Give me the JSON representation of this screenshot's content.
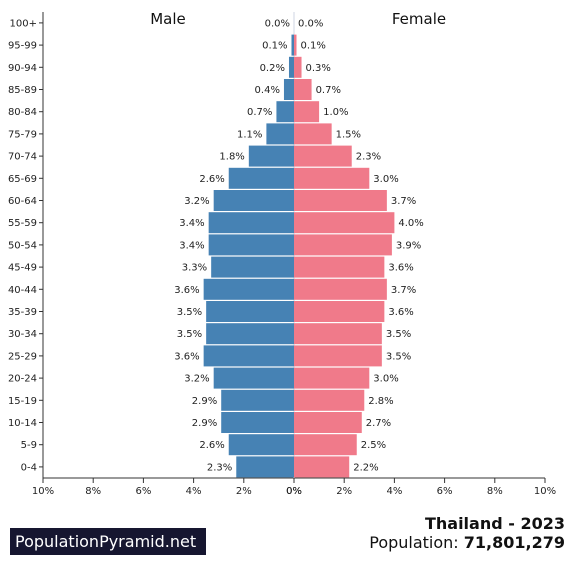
{
  "chart_data": {
    "type": "bar",
    "subtype": "population-pyramid",
    "categories": [
      "0-4",
      "5-9",
      "10-14",
      "15-19",
      "20-24",
      "25-29",
      "30-34",
      "35-39",
      "40-44",
      "45-49",
      "50-54",
      "55-59",
      "60-64",
      "65-69",
      "70-74",
      "75-79",
      "80-84",
      "85-89",
      "90-94",
      "95-99",
      "100+"
    ],
    "series": [
      {
        "name": "Male",
        "values": [
          2.3,
          2.6,
          2.9,
          2.9,
          3.2,
          3.6,
          3.5,
          3.5,
          3.6,
          3.3,
          3.4,
          3.4,
          3.2,
          2.6,
          1.8,
          1.1,
          0.7,
          0.4,
          0.2,
          0.1,
          0.0
        ],
        "color": "#4682b4"
      },
      {
        "name": "Female",
        "values": [
          2.2,
          2.5,
          2.7,
          2.8,
          3.0,
          3.5,
          3.5,
          3.6,
          3.7,
          3.6,
          3.9,
          4.0,
          3.7,
          3.0,
          2.3,
          1.5,
          1.0,
          0.7,
          0.3,
          0.1,
          0.0
        ],
        "color": "#f07a8a"
      }
    ],
    "value_labels": {
      "male": [
        "2.3%",
        "2.6%",
        "2.9%",
        "2.9%",
        "3.2%",
        "3.6%",
        "3.5%",
        "3.5%",
        "3.6%",
        "3.3%",
        "3.4%",
        "3.4%",
        "3.2%",
        "2.6%",
        "1.8%",
        "1.1%",
        "0.7%",
        "0.4%",
        "0.2%",
        "0.1%",
        "0.0%"
      ],
      "female": [
        "2.2%",
        "2.5%",
        "2.7%",
        "2.8%",
        "3.0%",
        "3.5%",
        "3.5%",
        "3.6%",
        "3.7%",
        "3.6%",
        "3.9%",
        "4.0%",
        "3.7%",
        "3.0%",
        "2.3%",
        "1.5%",
        "1.0%",
        "0.7%",
        "0.3%",
        "0.1%",
        "0.0%"
      ]
    },
    "x_ticks_left": [
      "10%",
      "8%",
      "6%",
      "4%",
      "2%",
      "0%"
    ],
    "x_ticks_right": [
      "0%",
      "2%",
      "4%",
      "6%",
      "8%",
      "10%"
    ],
    "xlim": [
      0,
      10
    ],
    "grid": false,
    "legend": "none"
  },
  "footer": {
    "brand": "PopulationPyramid.net",
    "title": "Thailand - 2023",
    "population_label": "Population:",
    "population_value": "71,801,279"
  }
}
